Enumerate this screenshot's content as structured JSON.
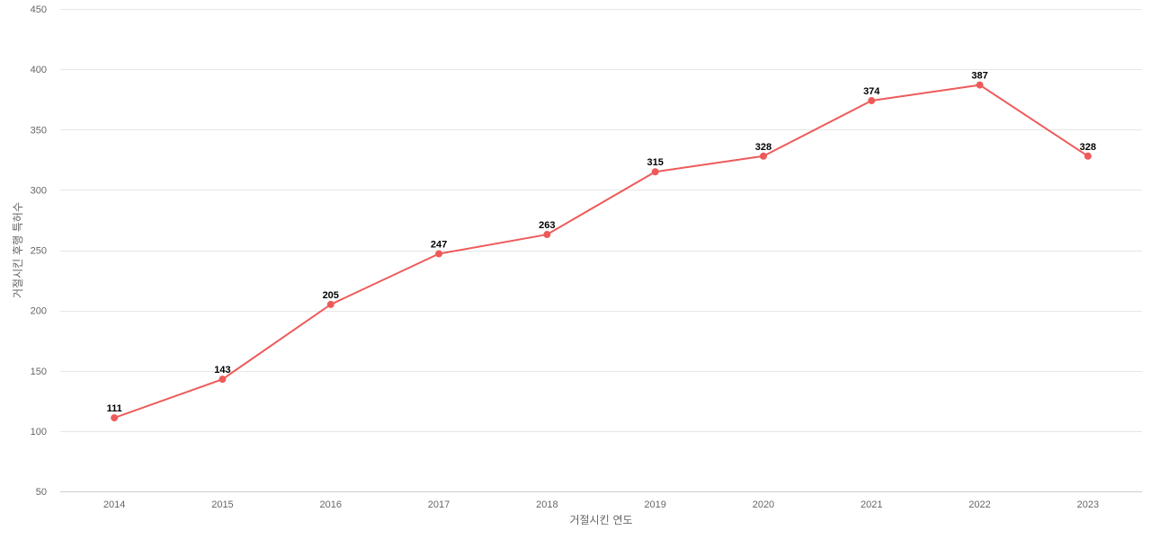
{
  "chart_data": {
    "type": "line",
    "xlabel": "거절시킨 연도",
    "ylabel": "거절시킨 후행 특허수",
    "x": [
      "2014",
      "2015",
      "2016",
      "2017",
      "2018",
      "2019",
      "2020",
      "2021",
      "2022",
      "2023"
    ],
    "series": [
      {
        "values": [
          111,
          143,
          205,
          247,
          263,
          315,
          328,
          374,
          387,
          328
        ],
        "color": "#ee5a5a"
      }
    ],
    "ylim": [
      50,
      450
    ],
    "yticks": [
      50,
      100,
      150,
      200,
      250,
      300,
      350,
      400,
      450
    ],
    "grid": true,
    "data_labels": true,
    "legend": "none"
  }
}
